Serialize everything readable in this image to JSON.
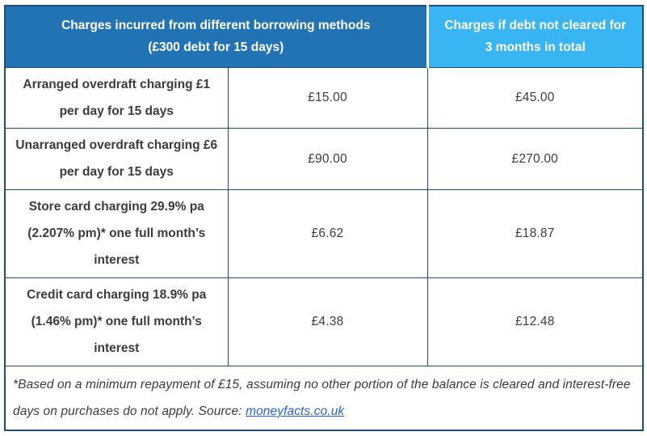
{
  "table": {
    "header": {
      "main_line1": "Charges incurred from different borrowing methods",
      "main_line2": "(£300 debt for 15 days)",
      "three_months": "Charges if debt not cleared for 3 months in total"
    },
    "rows": [
      {
        "method": "Arranged overdraft charging £1 per day for 15 days",
        "charge_15_days": "£15.00",
        "charge_3_months": "£45.00"
      },
      {
        "method": "Unarranged overdraft charging £6 per day for 15 days",
        "charge_15_days": "£90.00",
        "charge_3_months": "£270.00"
      },
      {
        "method": "Store card charging 29.9% pa (2.207% pm)* one full month’s interest",
        "charge_15_days": "£6.62",
        "charge_3_months": "£18.87"
      },
      {
        "method": "Credit card charging 18.9% pa (1.46% pm)* one full month’s interest",
        "charge_15_days": "£4.38",
        "charge_3_months": "£12.48"
      }
    ],
    "footnote": {
      "text_before_link": "*Based on a minimum repayment of £15, assuming no other portion of the balance is cleared and interest-free days on purchases do not apply. Source: ",
      "link_label": "moneyfacts.co.uk"
    },
    "colors": {
      "header_main_bg": "#2173B4",
      "header_3m_bg": "#3AB5F3",
      "border": "#1F4E79",
      "body_text": "#3B3B3B",
      "link": "#2563D8"
    }
  }
}
